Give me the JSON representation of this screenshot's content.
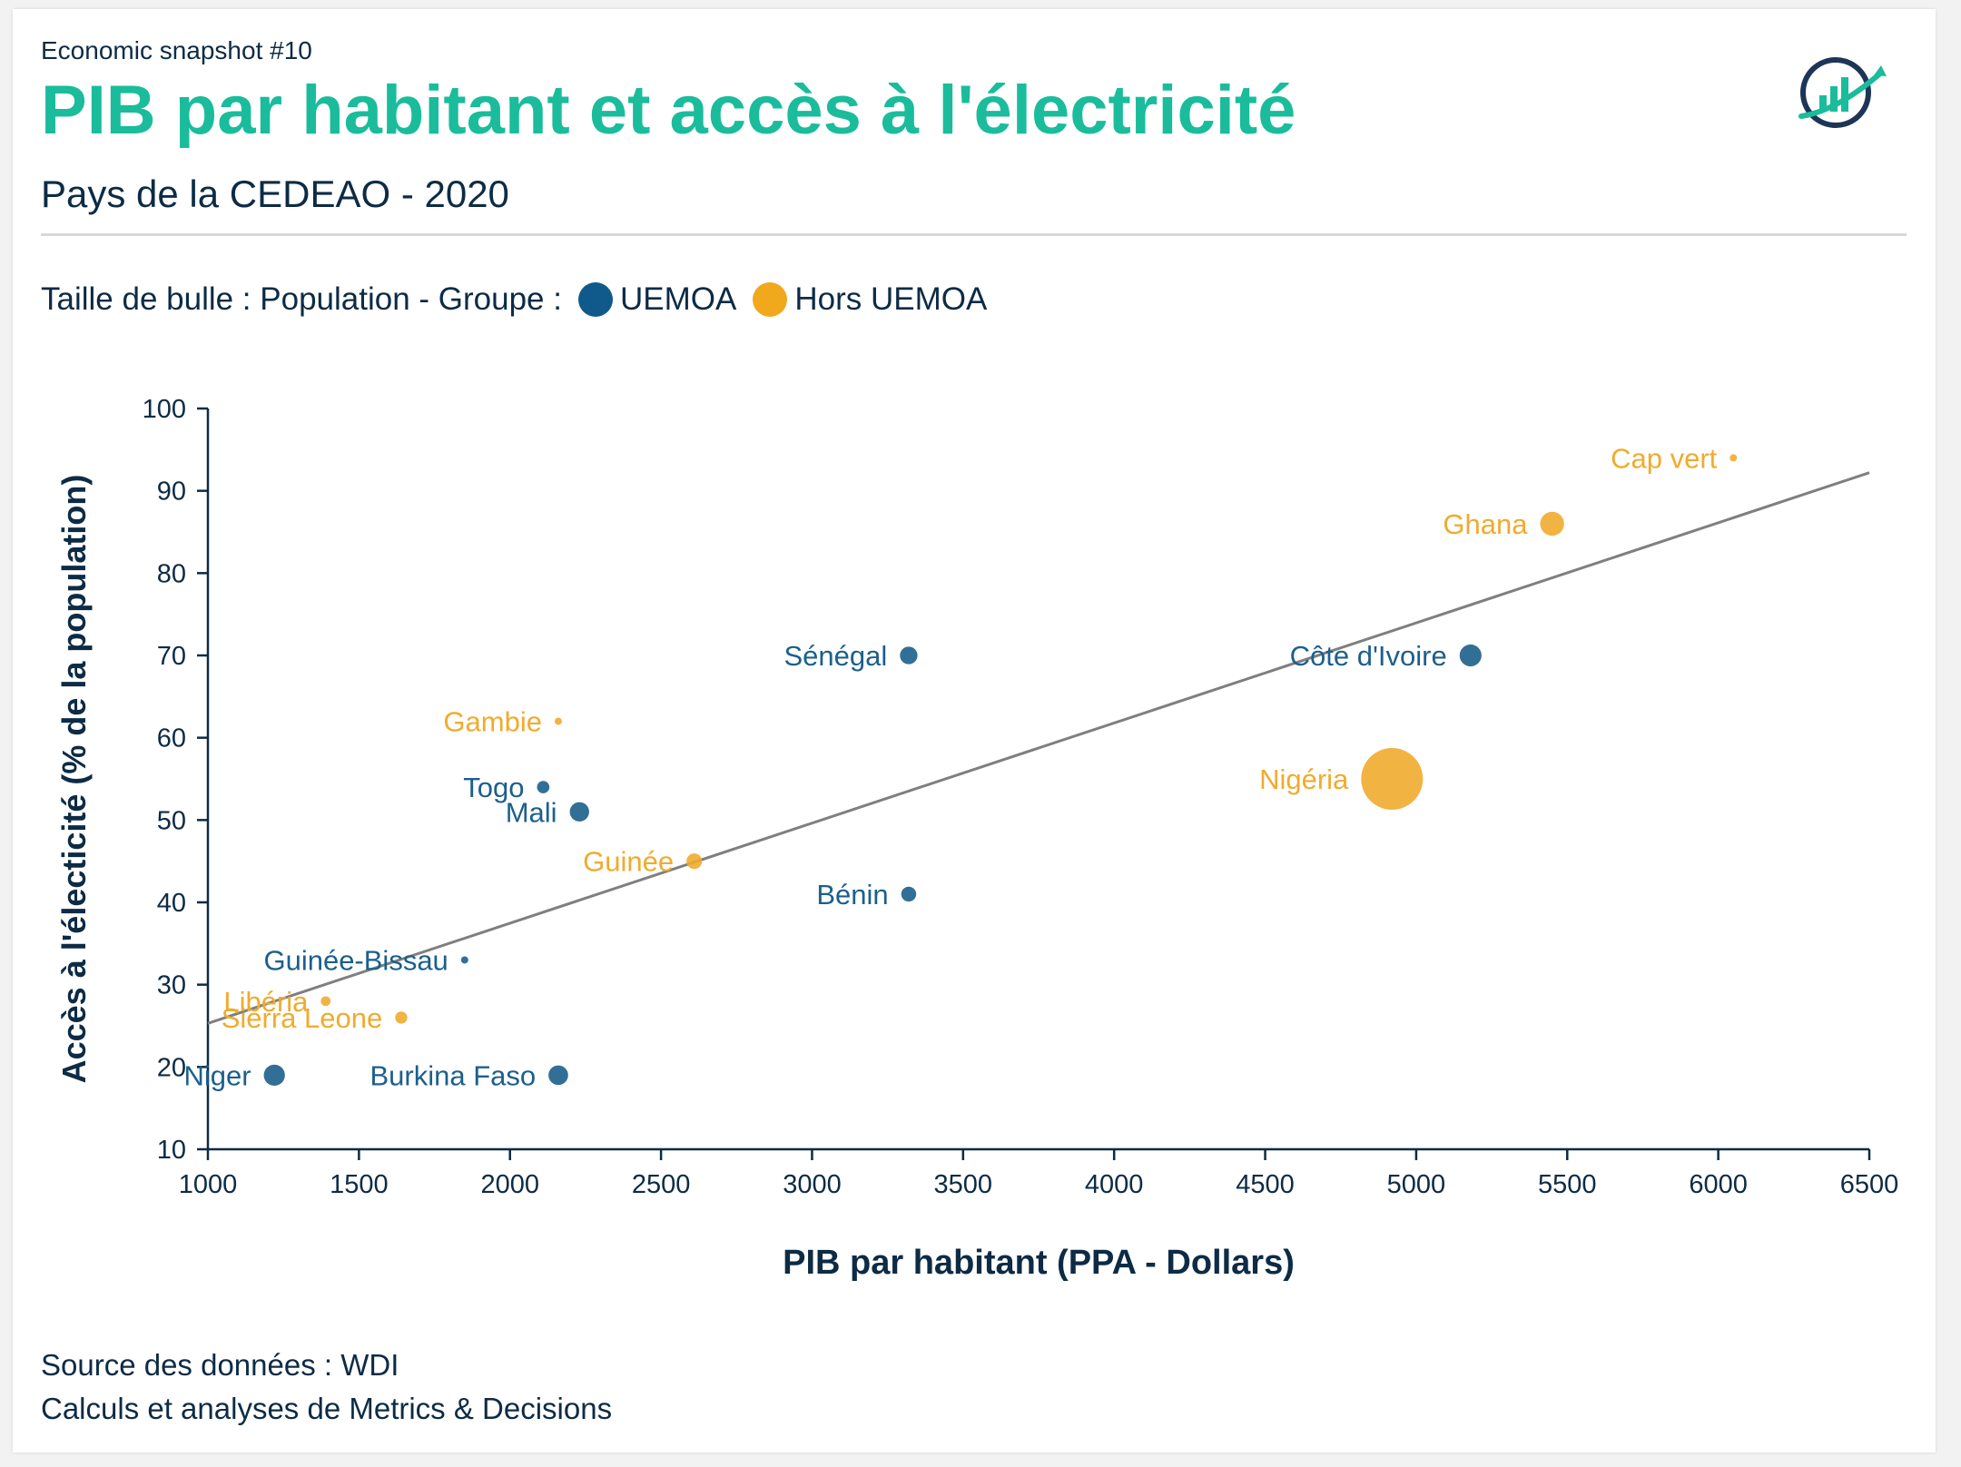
{
  "header": {
    "kicker": "Economic snapshot #10",
    "title": "PIB par habitant et accès à l'électricité",
    "subtitle": "Pays de la CEDEAO - 2020"
  },
  "legend": {
    "prefix": "Taille de bulle : Population - Groupe :",
    "groups": [
      {
        "label": "UEMOA",
        "color": "#0f5a8a"
      },
      {
        "label": "Hors UEMOA",
        "color": "#f2a81d"
      }
    ]
  },
  "logo_icon": "growth-chart-logo-icon",
  "chart_data": {
    "type": "scatter",
    "xlabel": "PIB par habitant (PPA - Dollars)",
    "ylabel": "Accès à l'électicité (% de la population)",
    "xlim": [
      1000,
      6500
    ],
    "ylim": [
      10,
      100
    ],
    "xticks": [
      1000,
      1500,
      2000,
      2500,
      3000,
      3500,
      4000,
      4500,
      5000,
      5500,
      6000,
      6500
    ],
    "yticks": [
      10,
      20,
      30,
      40,
      50,
      60,
      70,
      80,
      90,
      100
    ],
    "grid": false,
    "size_variable": "Population",
    "colors": {
      "UEMOA": "#1c5f8c",
      "Hors UEMOA": "#f0ab2e"
    },
    "trendline": {
      "x": [
        1000,
        6500
      ],
      "y": [
        25.3,
        92.2
      ],
      "color": "#7f7f7f"
    },
    "points": [
      {
        "name": "Cap vert",
        "group": "Hors UEMOA",
        "x": 6050,
        "y": 94,
        "population_m": 0.56
      },
      {
        "name": "Ghana",
        "group": "Hors UEMOA",
        "x": 5450,
        "y": 86,
        "population_m": 31
      },
      {
        "name": "Côte d'Ivoire",
        "group": "UEMOA",
        "x": 5180,
        "y": 70,
        "population_m": 26
      },
      {
        "name": "Nigéria",
        "group": "Hors UEMOA",
        "x": 4920,
        "y": 55,
        "population_m": 206
      },
      {
        "name": "Sénégal",
        "group": "UEMOA",
        "x": 3320,
        "y": 70,
        "population_m": 16.7
      },
      {
        "name": "Bénin",
        "group": "UEMOA",
        "x": 3320,
        "y": 41,
        "population_m": 12.1
      },
      {
        "name": "Guinée",
        "group": "Hors UEMOA",
        "x": 2610,
        "y": 45,
        "population_m": 13.1
      },
      {
        "name": "Gambie",
        "group": "Hors UEMOA",
        "x": 2160,
        "y": 62,
        "population_m": 2.4
      },
      {
        "name": "Mali",
        "group": "UEMOA",
        "x": 2230,
        "y": 51,
        "population_m": 20.3
      },
      {
        "name": "Togo",
        "group": "UEMOA",
        "x": 2110,
        "y": 54,
        "population_m": 8.3
      },
      {
        "name": "Burkina Faso",
        "group": "UEMOA",
        "x": 2160,
        "y": 19,
        "population_m": 20.9
      },
      {
        "name": "Guinée-Bissau",
        "group": "UEMOA",
        "x": 1850,
        "y": 33,
        "population_m": 2.0
      },
      {
        "name": "Sierra Leone",
        "group": "Hors UEMOA",
        "x": 1640,
        "y": 26,
        "population_m": 8.0
      },
      {
        "name": "Libéria",
        "group": "Hors UEMOA",
        "x": 1390,
        "y": 28,
        "population_m": 5.1
      },
      {
        "name": "Niger",
        "group": "UEMOA",
        "x": 1220,
        "y": 19,
        "population_m": 24.2
      }
    ]
  },
  "footer": {
    "source": "Source des données : WDI",
    "credits": "Calculs et analyses de Metrics & Decisions"
  }
}
